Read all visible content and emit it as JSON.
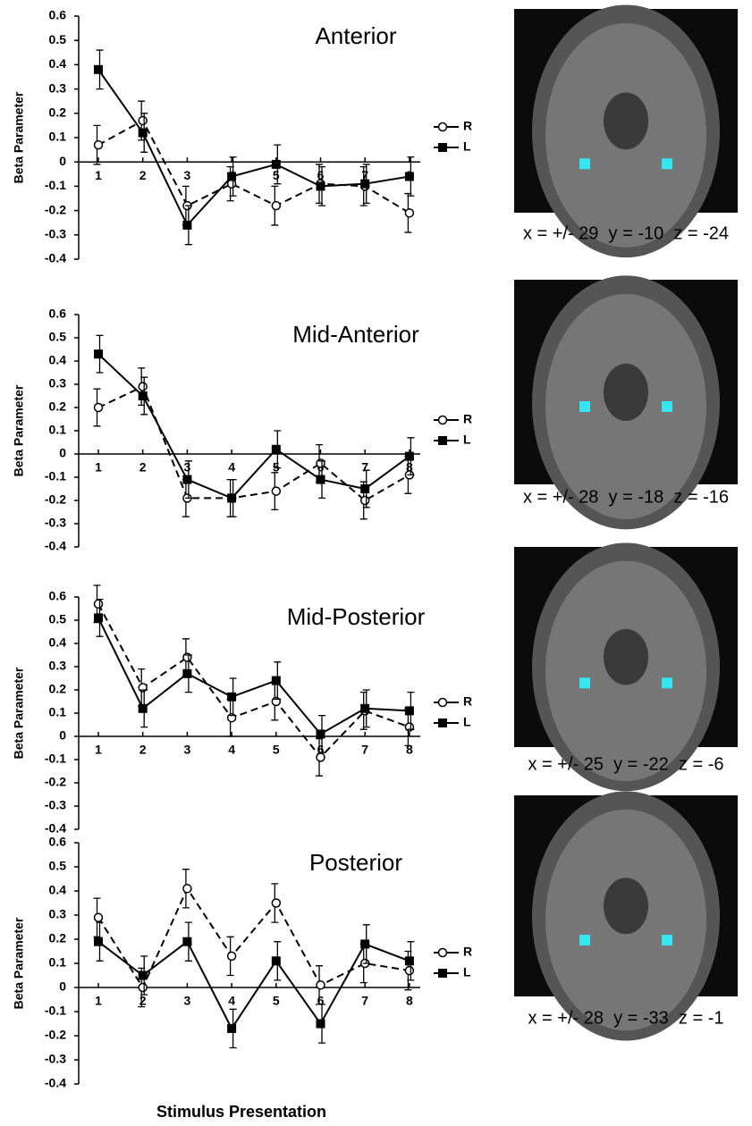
{
  "chart_data": [
    {
      "type": "line",
      "title": "Anterior",
      "ylabel": "Beta Parameter",
      "caption": "x = +/- 29  y = -10  z = -24",
      "categories": [
        "1",
        "2",
        "3",
        "4",
        "5",
        "6",
        "7",
        "8"
      ],
      "ylim": [
        -0.4,
        0.6
      ],
      "yticks": [
        0.6,
        0.5,
        0.4,
        0.3,
        0.2,
        0.1,
        0,
        -0.1,
        -0.2,
        -0.3,
        -0.4
      ],
      "legend": "right",
      "series": [
        {
          "name": "R",
          "color": "#000000",
          "line_style": "dashed",
          "marker": "circle",
          "values": [
            0.07,
            0.17,
            -0.18,
            -0.09,
            -0.18,
            -0.09,
            -0.1,
            -0.21
          ],
          "errors": [
            0.08,
            0.08,
            0.08,
            0.07,
            0.08,
            0.08,
            0.08,
            0.08
          ]
        },
        {
          "name": "L",
          "color": "#000000",
          "line_style": "solid",
          "marker": "square",
          "values": [
            0.38,
            0.12,
            -0.26,
            -0.06,
            -0.01,
            -0.1,
            -0.09,
            -0.06
          ],
          "errors": [
            0.08,
            0.08,
            0.08,
            0.08,
            0.08,
            0.08,
            0.08,
            0.08
          ]
        }
      ]
    },
    {
      "type": "line",
      "title": "Mid-Anterior",
      "ylabel": "Beta Parameter",
      "caption": "x = +/- 28  y = -18  z = -16",
      "categories": [
        "1",
        "2",
        "3",
        "4",
        "5",
        "6",
        "7",
        "8"
      ],
      "ylim": [
        -0.4,
        0.6
      ],
      "yticks": [
        0.6,
        0.5,
        0.4,
        0.3,
        0.2,
        0.1,
        0,
        -0.1,
        -0.2,
        -0.3,
        -0.4
      ],
      "legend": "right",
      "series": [
        {
          "name": "R",
          "color": "#000000",
          "line_style": "dashed",
          "marker": "circle",
          "values": [
            0.2,
            0.29,
            -0.19,
            -0.19,
            -0.16,
            -0.04,
            -0.2,
            -0.09
          ],
          "errors": [
            0.08,
            0.08,
            0.08,
            0.08,
            0.08,
            0.08,
            0.08,
            0.08
          ]
        },
        {
          "name": "L",
          "color": "#000000",
          "line_style": "solid",
          "marker": "square",
          "values": [
            0.43,
            0.25,
            -0.11,
            -0.19,
            0.02,
            -0.11,
            -0.15,
            -0.01
          ],
          "errors": [
            0.08,
            0.08,
            0.08,
            0.08,
            0.08,
            0.08,
            0.08,
            0.08
          ]
        }
      ]
    },
    {
      "type": "line",
      "title": "Mid-Posterior",
      "ylabel": "Beta Parameter",
      "caption": "x = +/- 25  y = -22  z = -6",
      "categories": [
        "1",
        "2",
        "3",
        "4",
        "5",
        "6",
        "7",
        "8"
      ],
      "ylim": [
        -0.4,
        0.6
      ],
      "yticks": [
        0.6,
        0.5,
        0.4,
        0.3,
        0.2,
        0.1,
        0,
        -0.1,
        -0.2,
        -0.3,
        -0.4
      ],
      "legend": "right",
      "series": [
        {
          "name": "R",
          "color": "#000000",
          "line_style": "dashed",
          "marker": "circle",
          "values": [
            0.57,
            0.21,
            0.34,
            0.08,
            0.15,
            -0.09,
            0.11,
            0.04
          ],
          "errors": [
            0.08,
            0.08,
            0.08,
            0.08,
            0.08,
            0.08,
            0.08,
            0.08
          ]
        },
        {
          "name": "L",
          "color": "#000000",
          "line_style": "solid",
          "marker": "square",
          "values": [
            0.51,
            0.12,
            0.27,
            0.17,
            0.24,
            0.01,
            0.12,
            0.11
          ],
          "errors": [
            0.08,
            0.08,
            0.08,
            0.08,
            0.08,
            0.08,
            0.08,
            0.08
          ]
        }
      ]
    },
    {
      "type": "line",
      "title": "Posterior",
      "ylabel": "Beta Parameter",
      "xlabel": "Stimulus Presentation",
      "caption": "x = +/- 28  y = -33  z = -1",
      "categories": [
        "1",
        "2",
        "3",
        "4",
        "5",
        "6",
        "7",
        "8"
      ],
      "ylim": [
        -0.4,
        0.6
      ],
      "yticks": [
        0.6,
        0.5,
        0.4,
        0.3,
        0.2,
        0.1,
        0,
        -0.1,
        -0.2,
        -0.3,
        -0.4
      ],
      "legend": "right",
      "series": [
        {
          "name": "R",
          "color": "#000000",
          "line_style": "dashed",
          "marker": "circle",
          "values": [
            0.29,
            0.0,
            0.41,
            0.13,
            0.35,
            0.01,
            0.1,
            0.07
          ],
          "errors": [
            0.08,
            0.08,
            0.08,
            0.08,
            0.08,
            0.08,
            0.08,
            0.08
          ]
        },
        {
          "name": "L",
          "color": "#000000",
          "line_style": "solid",
          "marker": "square",
          "values": [
            0.19,
            0.05,
            0.19,
            -0.17,
            0.11,
            -0.15,
            0.18,
            0.11
          ],
          "errors": [
            0.08,
            0.08,
            0.08,
            0.08,
            0.08,
            0.08,
            0.08,
            0.08
          ]
        }
      ]
    }
  ]
}
